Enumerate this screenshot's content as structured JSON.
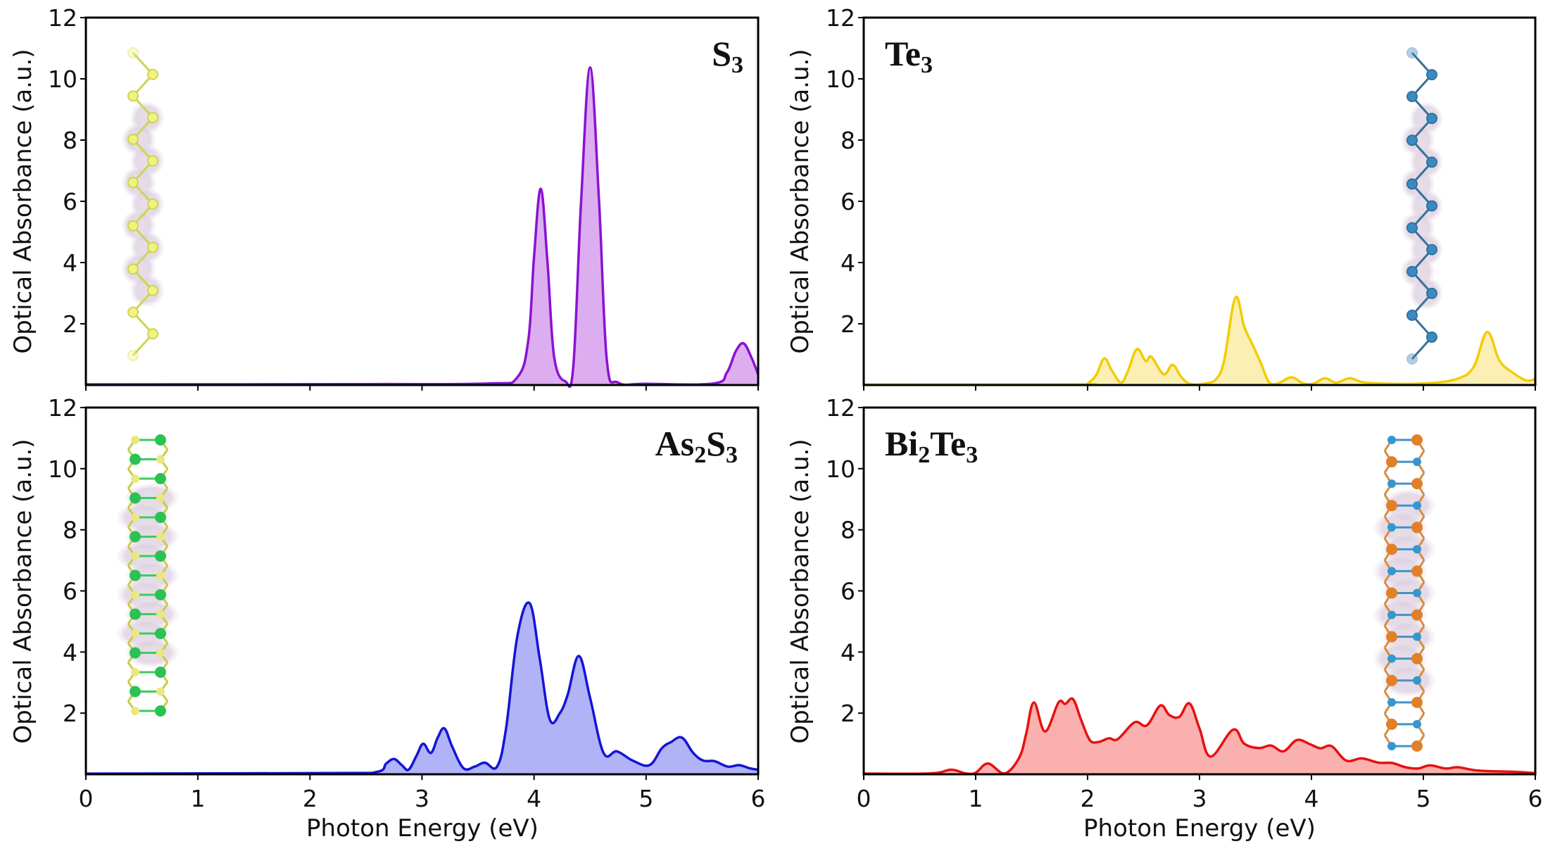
{
  "chart_data": [
    {
      "type": "area",
      "panel": "top-left",
      "label_main": "S",
      "label_sub": "3",
      "label": "S3",
      "label_position": "top-right",
      "xlabel": "",
      "ylabel": "Optical Absorbance (a.u.)",
      "xlim": [
        0,
        6
      ],
      "ylim": [
        0,
        12
      ],
      "xticks": [
        0,
        1,
        2,
        3,
        4,
        5,
        6
      ],
      "xtick_labels_shown": false,
      "yticks": [
        "2",
        "4",
        "6",
        "8",
        "10",
        "12"
      ],
      "line_color": "#8a12d4",
      "fill_color": "#dcaeef",
      "inset": "S3 chain structure with charge density",
      "inset_position": "left",
      "x": [
        0,
        2.5,
        3.6,
        3.85,
        3.95,
        4.0,
        4.06,
        4.12,
        4.18,
        4.28,
        4.35,
        4.42,
        4.5,
        4.58,
        4.65,
        4.75,
        5.0,
        5.6,
        5.72,
        5.8,
        5.87,
        5.94,
        6.0
      ],
      "y": [
        0.02,
        0.03,
        0.05,
        0.25,
        1.5,
        4.2,
        6.41,
        4.0,
        0.9,
        0.12,
        0.6,
        6.0,
        10.37,
        6.0,
        0.8,
        0.08,
        0.04,
        0.05,
        0.4,
        1.1,
        1.36,
        0.9,
        0.35
      ]
    },
    {
      "type": "area",
      "panel": "top-right",
      "label_main": "Te",
      "label_sub": "3",
      "label": "Te3",
      "label_position": "top-left",
      "xlabel": "",
      "ylabel": "Optical Absorbance (a.u.)",
      "xlim": [
        0,
        6
      ],
      "ylim": [
        0,
        12
      ],
      "xticks": [
        0,
        1,
        2,
        3,
        4,
        5,
        6
      ],
      "xtick_labels_shown": false,
      "yticks": [
        "2",
        "4",
        "6",
        "8",
        "10",
        "12"
      ],
      "line_color": "#f2cc00",
      "fill_color": "#fcefb4",
      "inset": "Te3 chain structure with charge density",
      "inset_position": "right",
      "x": [
        0,
        1.9,
        2.0,
        2.08,
        2.15,
        2.22,
        2.3,
        2.36,
        2.44,
        2.52,
        2.57,
        2.68,
        2.76,
        2.84,
        2.92,
        3.05,
        3.15,
        3.22,
        3.32,
        3.4,
        3.47,
        3.55,
        3.62,
        3.7,
        3.82,
        3.93,
        4.02,
        4.12,
        4.22,
        4.34,
        4.45,
        4.6,
        5.0,
        5.3,
        5.45,
        5.57,
        5.68,
        5.8,
        5.92,
        6.0
      ],
      "y": [
        0.02,
        0.02,
        0.05,
        0.35,
        0.87,
        0.45,
        0.08,
        0.45,
        1.17,
        0.78,
        0.92,
        0.35,
        0.66,
        0.25,
        0.03,
        0.05,
        0.2,
        0.8,
        2.85,
        1.9,
        1.35,
        0.7,
        0.1,
        0.05,
        0.25,
        0.05,
        0.05,
        0.22,
        0.08,
        0.22,
        0.1,
        0.05,
        0.05,
        0.2,
        0.6,
        1.73,
        0.8,
        0.4,
        0.15,
        0.2
      ]
    },
    {
      "type": "area",
      "panel": "bottom-left",
      "label_main": "As",
      "label_sub": "2",
      "label_main2": "S",
      "label_sub2": "3",
      "label": "As2S3",
      "label_position": "top-right",
      "xlabel": "Photon Energy (eV)",
      "ylabel": "Optical Absorbance (a.u.)",
      "xlim": [
        0,
        6
      ],
      "ylim": [
        0,
        12
      ],
      "xticks": [
        0,
        1,
        2,
        3,
        4,
        5,
        6
      ],
      "xtick_labels": [
        "0",
        "1",
        "2",
        "3",
        "4",
        "5",
        "6"
      ],
      "xtick_labels_shown": true,
      "yticks": [
        "2",
        "4",
        "6",
        "8",
        "10",
        "12"
      ],
      "line_color": "#1414d6",
      "fill_color": "#b0b3f5",
      "inset": "As2S3 ribbon structure with charge density",
      "inset_position": "left",
      "x": [
        0,
        2.2,
        2.6,
        2.68,
        2.75,
        2.82,
        2.88,
        2.95,
        3.01,
        3.08,
        3.14,
        3.2,
        3.27,
        3.37,
        3.47,
        3.56,
        3.67,
        3.75,
        3.85,
        3.96,
        4.05,
        4.14,
        4.23,
        4.3,
        4.4,
        4.5,
        4.62,
        4.74,
        4.88,
        5.03,
        5.14,
        5.22,
        5.32,
        5.42,
        5.51,
        5.61,
        5.73,
        5.83,
        5.92,
        6.0
      ],
      "y": [
        0.02,
        0.04,
        0.08,
        0.35,
        0.5,
        0.3,
        0.15,
        0.6,
        1.0,
        0.7,
        1.2,
        1.5,
        0.9,
        0.2,
        0.25,
        0.38,
        0.25,
        1.5,
        4.5,
        5.6,
        3.8,
        1.8,
        2.0,
        2.6,
        3.87,
        2.5,
        0.7,
        0.75,
        0.45,
        0.3,
        0.85,
        1.05,
        1.2,
        0.7,
        0.45,
        0.43,
        0.25,
        0.3,
        0.2,
        0.15
      ]
    },
    {
      "type": "area",
      "panel": "bottom-right",
      "label_main": "Bi",
      "label_sub": "2",
      "label_main2": "Te",
      "label_sub2": "3",
      "label": "Bi2Te3",
      "label_position": "top-left",
      "xlabel": "Photon Energy (eV)",
      "ylabel": "Optical Absorbance (a.u.)",
      "xlim": [
        0,
        6
      ],
      "ylim": [
        0,
        12
      ],
      "xticks": [
        0,
        1,
        2,
        3,
        4,
        5,
        6
      ],
      "xtick_labels": [
        "0",
        "1",
        "2",
        "3",
        "4",
        "5",
        "6"
      ],
      "xtick_labels_shown": true,
      "yticks": [
        "2",
        "4",
        "6",
        "8",
        "10",
        "12"
      ],
      "line_color": "#e81010",
      "fill_color": "#fbb0b0",
      "inset": "Bi2Te3 ribbon structure with charge density",
      "inset_position": "right",
      "x": [
        0,
        0.6,
        0.78,
        0.91,
        1.0,
        1.11,
        1.26,
        1.39,
        1.45,
        1.52,
        1.62,
        1.74,
        1.8,
        1.87,
        1.94,
        2.02,
        2.1,
        2.19,
        2.27,
        2.42,
        2.53,
        2.65,
        2.73,
        2.82,
        2.91,
        3.0,
        3.1,
        3.3,
        3.4,
        3.53,
        3.64,
        3.75,
        3.87,
        3.99,
        4.08,
        4.18,
        4.31,
        4.45,
        4.6,
        4.72,
        4.84,
        4.95,
        5.06,
        5.2,
        5.31,
        5.49,
        5.81,
        6.0
      ],
      "y": [
        0.02,
        0.03,
        0.15,
        0.03,
        0.05,
        0.35,
        0.03,
        0.55,
        1.3,
        2.35,
        1.4,
        2.35,
        2.3,
        2.46,
        1.8,
        1.12,
        1.06,
        1.18,
        1.15,
        1.7,
        1.6,
        2.25,
        1.94,
        1.88,
        2.32,
        1.5,
        0.58,
        1.46,
        1.0,
        0.86,
        0.94,
        0.75,
        1.12,
        0.98,
        0.85,
        0.92,
        0.45,
        0.52,
        0.38,
        0.37,
        0.23,
        0.19,
        0.29,
        0.19,
        0.23,
        0.12,
        0.08,
        0.04
      ]
    }
  ]
}
